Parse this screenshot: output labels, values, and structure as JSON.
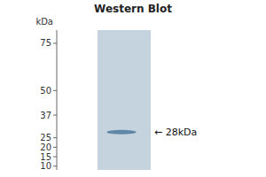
{
  "chart_data": {
    "type": "blot",
    "title": "Western Blot",
    "y_label": "kDa",
    "values": [
      28
    ],
    "color": "#5580a0",
    "ylim": [
      8,
      82
    ],
    "yticks": [
      10,
      15,
      20,
      25,
      37,
      50,
      75
    ],
    "annotations": [
      {
        "text": "← 28kDa",
        "y": 28
      }
    ]
  }
}
